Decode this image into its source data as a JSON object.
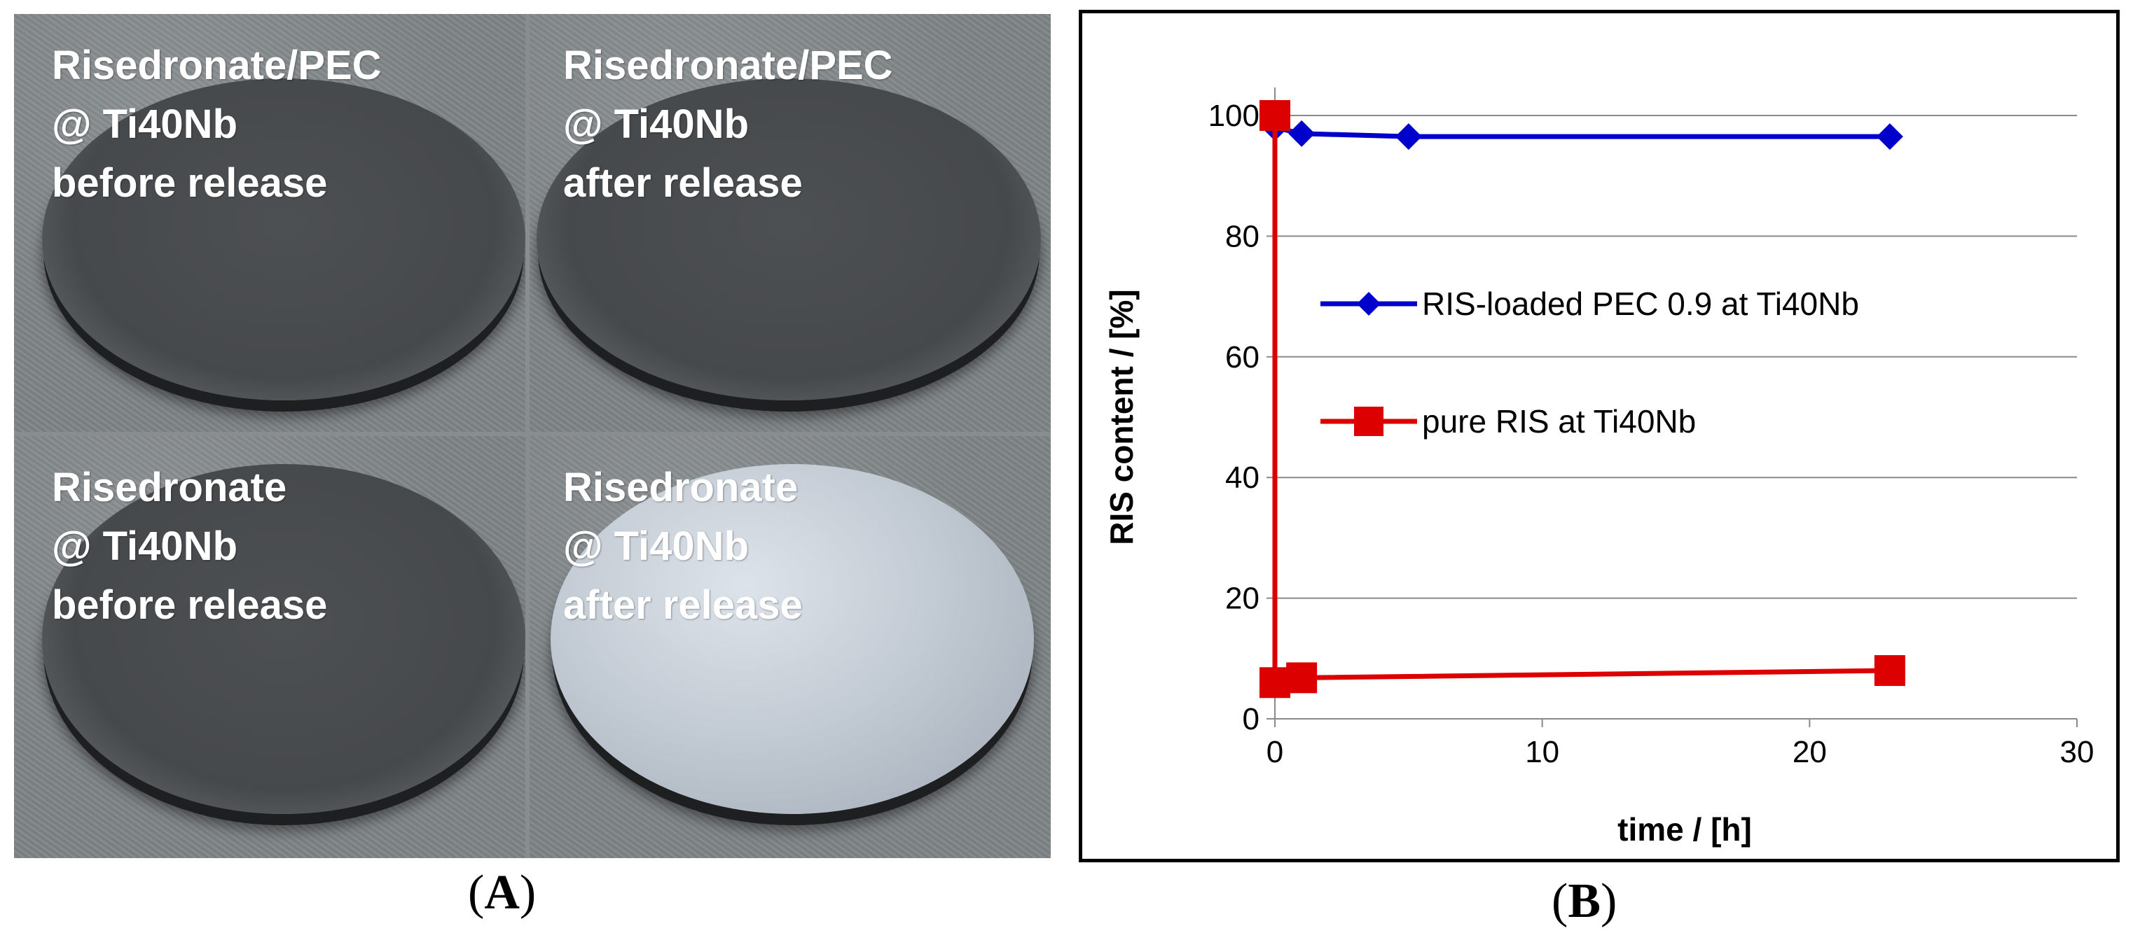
{
  "figure": {
    "panel_a_caption": "A",
    "panel_b_caption": "B"
  },
  "photos": [
    {
      "lines": [
        "Risedronate/PEC",
        "@ Ti40Nb",
        "before release"
      ],
      "surface": "dark"
    },
    {
      "lines": [
        "Risedronate/PEC",
        "@ Ti40Nb",
        "after release"
      ],
      "surface": "dark"
    },
    {
      "lines": [
        "Risedronate",
        "@ Ti40Nb",
        "before release"
      ],
      "surface": "dark"
    },
    {
      "lines": [
        "Risedronate",
        "@ Ti40Nb",
        "after release"
      ],
      "surface": "light"
    }
  ],
  "chart_data": {
    "type": "line",
    "title": "",
    "xlabel": "time / [h]",
    "ylabel": "RIS content / [%]",
    "xlim": [
      0,
      30
    ],
    "ylim": [
      0,
      100
    ],
    "xticks": [
      0,
      10,
      20,
      30
    ],
    "yticks": [
      0,
      20,
      40,
      60,
      80,
      100
    ],
    "grid": "horizontal",
    "legend_position": "center-right",
    "series": [
      {
        "name": "RIS-loaded PEC 0.9 at Ti40Nb",
        "color": "#0000cc",
        "marker": "diamond",
        "x": [
          0,
          1,
          5,
          23
        ],
        "y": [
          98,
          97,
          96.5,
          96.5
        ]
      },
      {
        "name": "pure RIS at Ti40Nb",
        "color": "#dd0000",
        "marker": "square",
        "x": [
          0,
          0,
          1,
          23
        ],
        "y": [
          100,
          6,
          6.8,
          8
        ]
      }
    ]
  }
}
